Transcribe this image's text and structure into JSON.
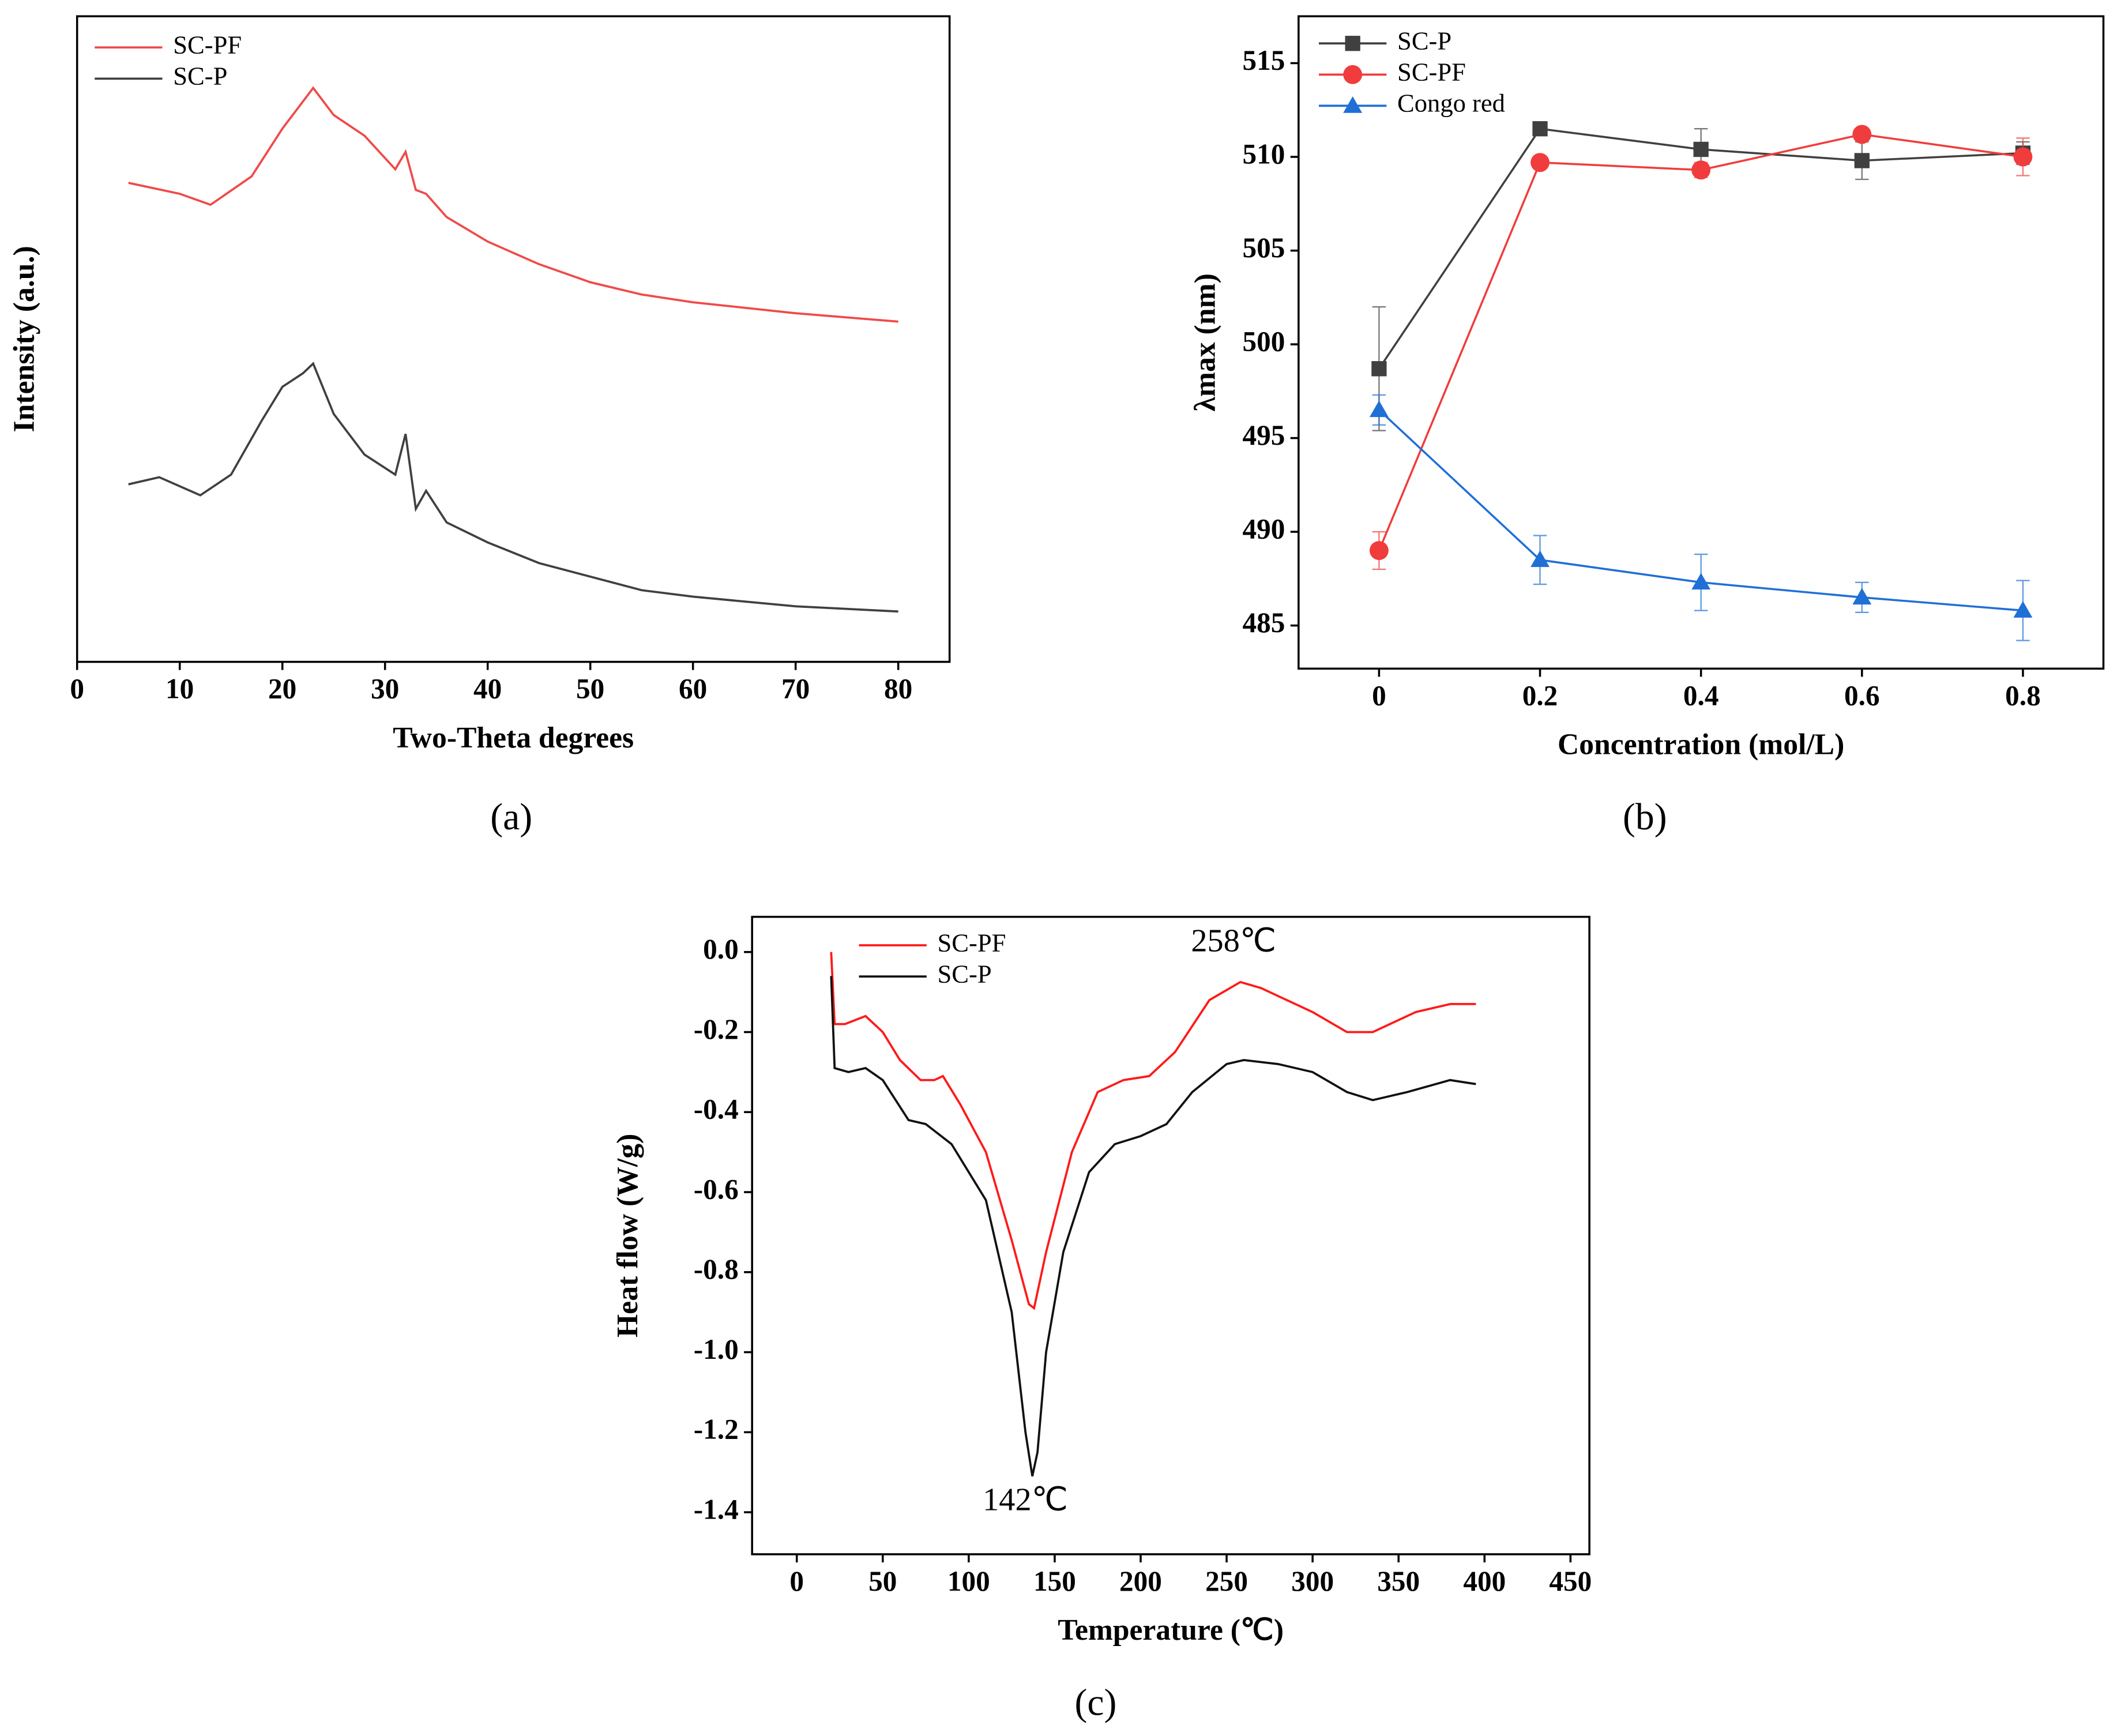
{
  "chart_data": [
    {
      "type": "line",
      "panel_label": "(a)",
      "x_label": "Two-Theta  degrees",
      "y_label": "Intensity (a.u.)",
      "xlim": [
        0,
        85
      ],
      "xticks": [
        0,
        10,
        20,
        30,
        40,
        50,
        60,
        70,
        80
      ],
      "ylim": [
        0,
        100
      ],
      "legend": "upper left",
      "series": [
        {
          "name": "SC-PF",
          "color": "#f04a4a",
          "x": [
            5,
            10,
            13,
            17,
            20,
            22,
            23,
            25,
            28,
            31,
            32,
            33,
            34,
            36,
            40,
            45,
            50,
            55,
            60,
            70,
            80
          ],
          "values": [
            74.2,
            72.5,
            70.8,
            75.2,
            82.6,
            86.8,
            88.9,
            84.7,
            81.5,
            76.3,
            79,
            73.1,
            72.5,
            68.9,
            65.1,
            61.6,
            58.8,
            56.9,
            55.7,
            54,
            52.7
          ]
        },
        {
          "name": "SC-P",
          "color": "#404040",
          "x": [
            5,
            8,
            12,
            15,
            18,
            20,
            22,
            23,
            25,
            28,
            31,
            32,
            33,
            34,
            36,
            40,
            45,
            50,
            55,
            60,
            70,
            80
          ],
          "values": [
            27.5,
            28.6,
            25.8,
            29,
            37.4,
            42.6,
            44.7,
            46.2,
            38.4,
            32.1,
            29,
            35.3,
            23.7,
            26.5,
            21.6,
            18.5,
            15.3,
            13.2,
            11.1,
            10.1,
            8.6,
            7.8
          ]
        }
      ]
    },
    {
      "type": "line",
      "panel_label": "(b)",
      "x_label": "Concentration (mol/L)",
      "y_label": "λmax (nm)",
      "xlim": [
        -0.1,
        0.9
      ],
      "xticks": [
        0,
        0.2,
        0.4,
        0.6,
        0.8
      ],
      "ylim": [
        482.7,
        517.5
      ],
      "yticks": [
        485,
        490,
        495,
        500,
        505,
        510,
        515
      ],
      "legend": "upper left",
      "x": [
        0,
        0.2,
        0.4,
        0.6,
        0.8
      ],
      "series": [
        {
          "name": "SC-P",
          "color": "#404040",
          "marker": "square",
          "values": [
            498.7,
            511.5,
            510.4,
            509.8,
            510.2
          ],
          "errors": [
            3.3,
            0.3,
            1.1,
            1,
            0.6
          ]
        },
        {
          "name": "SC-PF",
          "color": "#f03c3c",
          "marker": "circle",
          "values": [
            489,
            509.7,
            509.3,
            511.2,
            510
          ],
          "errors": [
            1,
            0.2,
            0.4,
            0.2,
            1
          ]
        },
        {
          "name": "Congo red",
          "color": "#1f6fd6",
          "marker": "triangle",
          "values": [
            496.5,
            488.5,
            487.3,
            486.5,
            485.8
          ],
          "errors": [
            0.8,
            1.3,
            1.5,
            0.8,
            1.6
          ]
        }
      ]
    },
    {
      "type": "line",
      "panel_label": "(c)",
      "x_label": "Temperature (℃)",
      "y_label": "Heat flow (W/g)",
      "xlim": [
        -26,
        461
      ],
      "xticks": [
        0,
        50,
        100,
        150,
        200,
        250,
        300,
        350,
        400,
        450
      ],
      "ylim": [
        -1.505,
        0.088
      ],
      "yticks": [
        {
          "value": 0,
          "label": "0.0"
        },
        -0.2,
        -0.4,
        -0.6,
        -0.8,
        {
          "value": -1,
          "label": "-1.0"
        },
        -1.2,
        -1.4
      ],
      "legend": "upper left",
      "annotations": [
        "258℃",
        "142℃"
      ],
      "series": [
        {
          "name": "SC-PF",
          "color": "#ff1a1a",
          "x": [
            20,
            22,
            28,
            40,
            50,
            60,
            72,
            80,
            85,
            95,
            110,
            125,
            135,
            138,
            145,
            160,
            175,
            190,
            205,
            220,
            240,
            258,
            270,
            280,
            300,
            320,
            335,
            360,
            380,
            395
          ],
          "values": [
            0,
            -0.18,
            -0.18,
            -0.16,
            -0.2,
            -0.27,
            -0.32,
            -0.32,
            -0.31,
            -0.38,
            -0.5,
            -0.72,
            -0.88,
            -0.89,
            -0.75,
            -0.5,
            -0.35,
            -0.32,
            -0.31,
            -0.25,
            -0.12,
            -0.075,
            -0.09,
            -0.11,
            -0.15,
            -0.2,
            -0.2,
            -0.15,
            -0.13,
            -0.13
          ]
        },
        {
          "name": "SC-P",
          "color": "#111111",
          "x": [
            20,
            22,
            30,
            40,
            50,
            65,
            75,
            90,
            110,
            125,
            133,
            137,
            140,
            145,
            155,
            170,
            185,
            200,
            215,
            230,
            250,
            260,
            280,
            300,
            320,
            335,
            355,
            380,
            395
          ],
          "values": [
            -0.06,
            -0.29,
            -0.3,
            -0.29,
            -0.32,
            -0.42,
            -0.43,
            -0.48,
            -0.62,
            -0.9,
            -1.2,
            -1.31,
            -1.25,
            -1,
            -0.75,
            -0.55,
            -0.48,
            -0.46,
            -0.43,
            -0.35,
            -0.28,
            -0.27,
            -0.28,
            -0.3,
            -0.35,
            -0.37,
            -0.35,
            -0.32,
            -0.33
          ]
        }
      ]
    }
  ]
}
